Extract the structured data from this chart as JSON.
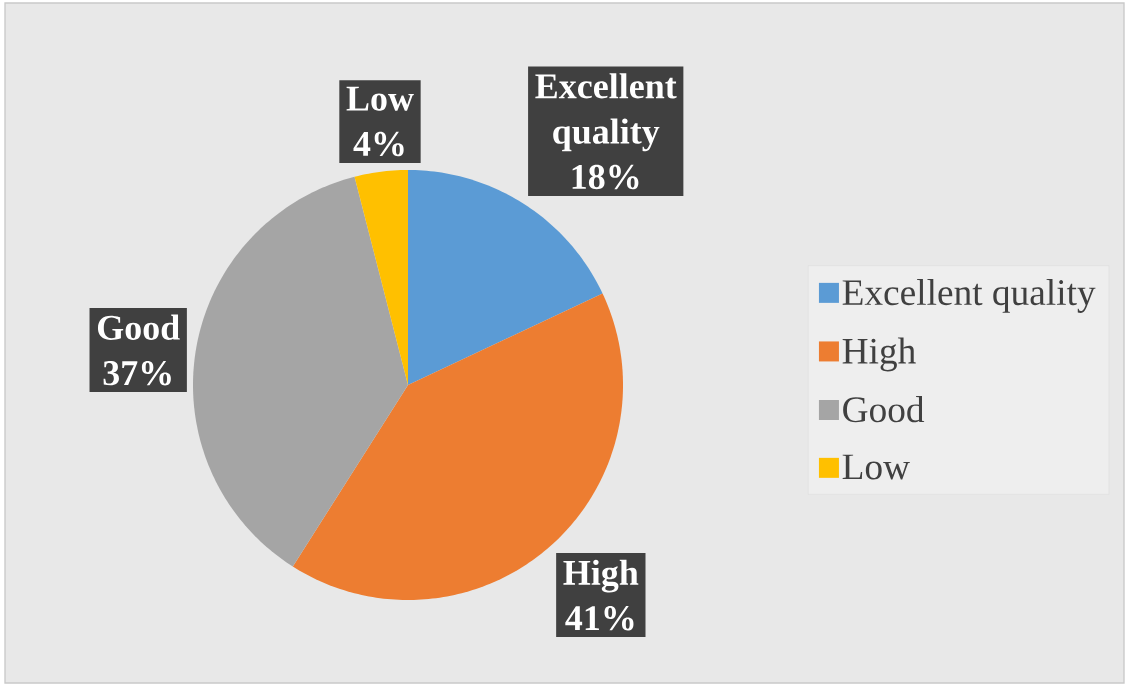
{
  "chart_data": {
    "type": "pie",
    "categories": [
      "Excellent quality",
      "High",
      "Good",
      "Low"
    ],
    "values": [
      18,
      41,
      37,
      4
    ],
    "colors": [
      "#5b9bd5",
      "#ed7d31",
      "#a5a5a5",
      "#ffc000"
    ],
    "value_labels": [
      "18%",
      "41%",
      "37%",
      "4%"
    ],
    "legend": "right"
  }
}
